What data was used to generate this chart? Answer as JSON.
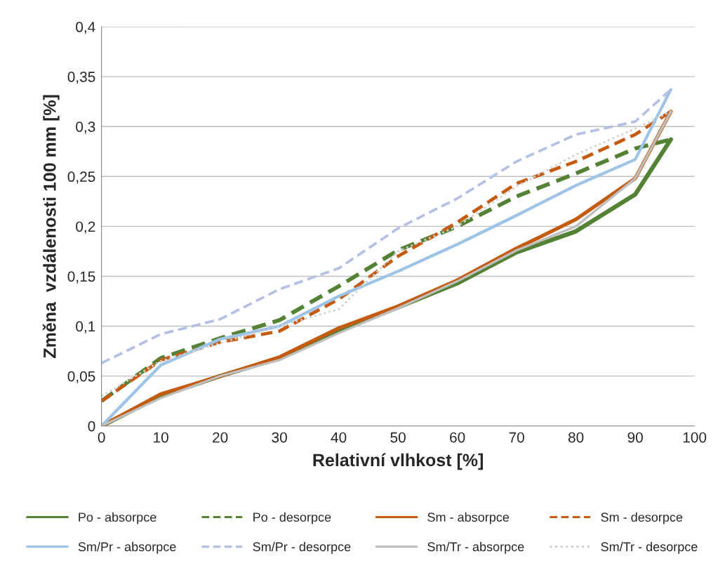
{
  "chart_data": {
    "type": "line",
    "xlabel": "Relativní vlhkost [%]",
    "ylabel": "Změna  vzdálenosti 100 mm [%]",
    "x": [
      0,
      10,
      20,
      30,
      40,
      50,
      60,
      70,
      80,
      90,
      96
    ],
    "series": [
      {
        "name": "Po - absorpce",
        "color": "#548235",
        "line_style": "solid",
        "values": [
          0,
          0.03,
          0.05,
          0.068,
          0.095,
          0.119,
          0.143,
          0.174,
          0.195,
          0.232,
          0.287
        ]
      },
      {
        "name": "Po - desorpce",
        "color": "#548235",
        "line_style": "dashed",
        "values": [
          0.025,
          0.068,
          0.088,
          0.106,
          0.14,
          0.176,
          0.2,
          0.23,
          0.253,
          0.278,
          0.287
        ]
      },
      {
        "name": "Sm - absorpce",
        "color": "#c55a11",
        "line_style": "solid",
        "values": [
          0,
          0.032,
          0.05,
          0.069,
          0.098,
          0.12,
          0.146,
          0.178,
          0.207,
          0.248,
          0.315
        ]
      },
      {
        "name": "Sm - desorpce",
        "color": "#c55a11",
        "line_style": "dashed",
        "values": [
          0.025,
          0.066,
          0.084,
          0.095,
          0.127,
          0.17,
          0.204,
          0.243,
          0.265,
          0.292,
          0.315
        ]
      },
      {
        "name": "Sm/Pr - absorpce",
        "color": "#9dc3e6",
        "line_style": "solid",
        "values": [
          0,
          0.061,
          0.087,
          0.1,
          0.13,
          0.155,
          0.182,
          0.211,
          0.241,
          0.267,
          0.337
        ]
      },
      {
        "name": "Sm/Pr - desorpce",
        "color": "#b4c0e4",
        "line_style": "dashed",
        "values": [
          0.063,
          0.092,
          0.107,
          0.137,
          0.158,
          0.198,
          0.228,
          0.265,
          0.292,
          0.305,
          0.337
        ]
      },
      {
        "name": "Sm/Tr - absorpce",
        "color": "#bfbfbf",
        "line_style": "solid",
        "values": [
          0,
          0.028,
          0.05,
          0.066,
          0.093,
          0.118,
          0.145,
          0.176,
          0.2,
          0.248,
          0.315
        ]
      },
      {
        "name": "Sm/Tr - desorpce",
        "color": "#d0d0d0",
        "line_style": "dotted",
        "values": [
          0.03,
          0.065,
          0.083,
          0.1,
          0.117,
          0.175,
          0.2,
          0.24,
          0.272,
          0.298,
          0.315
        ]
      }
    ],
    "xlim": [
      0,
      100
    ],
    "xticks": [
      0,
      10,
      20,
      30,
      40,
      50,
      60,
      70,
      80,
      90,
      100
    ],
    "ylim": [
      0,
      0.4
    ],
    "yticks": [
      0,
      {
        "value": 0.05,
        "label": "0,05"
      },
      {
        "value": 0.1,
        "label": "0,1"
      },
      {
        "value": 0.15,
        "label": "0,15"
      },
      {
        "value": 0.2,
        "label": "0,2"
      },
      {
        "value": 0.25,
        "label": "0,25"
      },
      {
        "value": 0.3,
        "label": "0,3"
      },
      {
        "value": 0.35,
        "label": "0,35"
      },
      {
        "value": 0.4,
        "label": "0,4"
      }
    ],
    "grid": "y",
    "legend": "bottom",
    "marker": "none"
  }
}
